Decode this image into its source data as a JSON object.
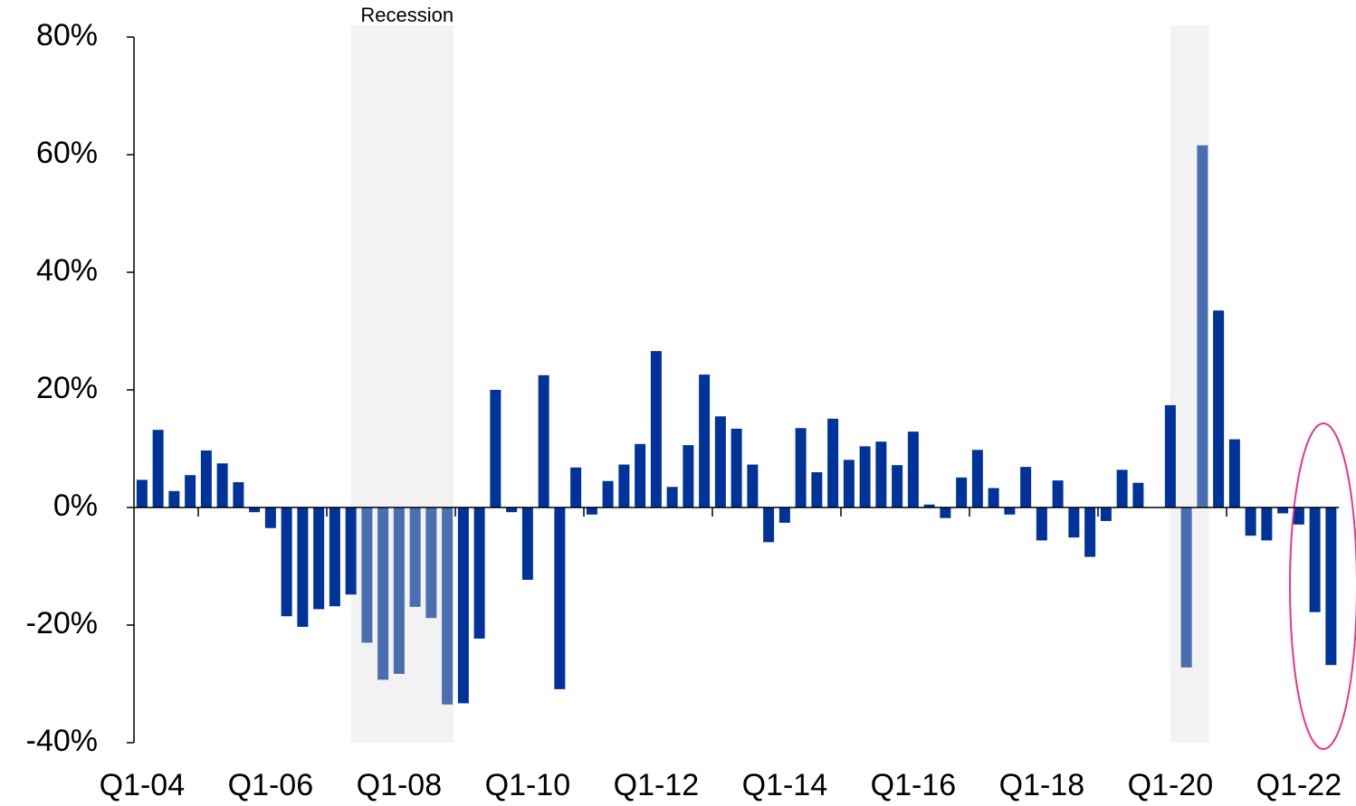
{
  "chart_data": {
    "type": "bar",
    "annotations": [
      "Recession"
    ],
    "categories": [
      "Q1-04",
      null,
      null,
      null,
      null,
      null,
      null,
      null,
      "Q1-06",
      null,
      null,
      null,
      null,
      null,
      null,
      null,
      "Q1-08",
      null,
      null,
      null,
      null,
      null,
      null,
      null,
      "Q1-10",
      null,
      null,
      null,
      null,
      null,
      null,
      null,
      "Q1-12",
      null,
      null,
      null,
      null,
      null,
      null,
      null,
      "Q1-14",
      null,
      null,
      null,
      null,
      null,
      null,
      null,
      "Q1-16",
      null,
      null,
      null,
      null,
      null,
      null,
      null,
      "Q1-18",
      null,
      null,
      null,
      null,
      null,
      null,
      null,
      "Q1-20",
      null,
      null,
      null,
      null,
      null,
      null,
      null,
      "Q1-22",
      null,
      null
    ],
    "values": [
      4.7,
      13.2,
      2.8,
      5.5,
      9.7,
      7.5,
      4.3,
      -0.8,
      -3.5,
      -18.5,
      -20.3,
      -17.3,
      -16.8,
      -14.8,
      -23,
      -29.3,
      -28.3,
      -16.9,
      -18.8,
      -33.5,
      -33.3,
      -22.3,
      20,
      -0.8,
      -12.3,
      22.5,
      -30.9,
      6.8,
      -1.2,
      4.5,
      7.3,
      10.8,
      26.6,
      3.5,
      10.6,
      22.6,
      15.5,
      13.4,
      7.3,
      -5.9,
      -2.6,
      13.5,
      6,
      15.1,
      8.1,
      10.4,
      11.2,
      7.2,
      12.9,
      0.5,
      -1.8,
      5.1,
      9.8,
      3.3,
      -1.2,
      6.9,
      -5.6,
      4.6,
      -5.1,
      -8.4,
      -2.3,
      6.4,
      4.2,
      0,
      17.4,
      -27.2,
      61.6,
      33.5,
      11.6,
      -4.8,
      -5.6,
      -1,
      -2.9,
      -17.8,
      -26.8
    ],
    "color": "#003399",
    "recession_color": "#4a6fb0",
    "shade_color": "#f2f2f2",
    "recessions": [
      [
        14,
        19
      ],
      [
        65,
        66
      ]
    ],
    "ylim": [
      -40,
      80
    ],
    "yticks": [
      {
        "value": -40,
        "label": "-40%"
      },
      {
        "value": -20,
        "label": "-20%"
      },
      {
        "value": 0,
        "label": "0%"
      },
      {
        "value": 20,
        "label": "20%"
      },
      {
        "value": 40,
        "label": "40%"
      },
      {
        "value": 60,
        "label": "60%"
      },
      {
        "value": 80,
        "label": "80%"
      }
    ],
    "grid": false
  }
}
